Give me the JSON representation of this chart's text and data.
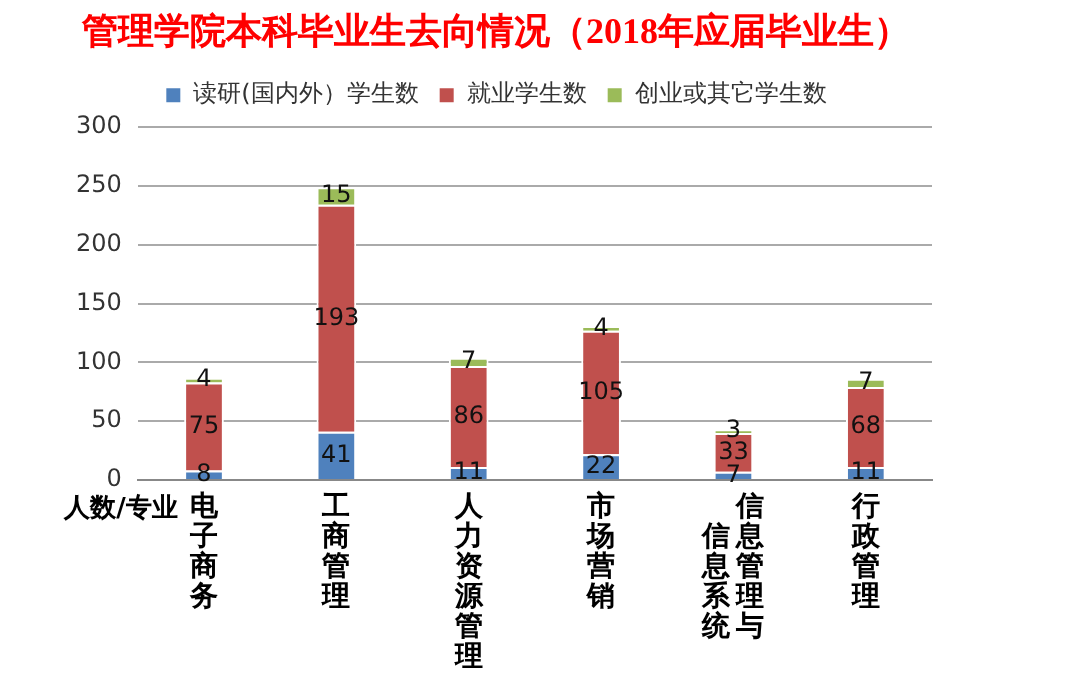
{
  "chart_data": {
    "type": "bar",
    "title": "管理学院本科毕业生去向情况（2018年应届毕业生）",
    "xlabel": "人数/专业",
    "categories": [
      "电子商务",
      "工商管理",
      "人力资源管理",
      "市场营销",
      "信息管理与信息系统",
      "行政管理"
    ],
    "series": [
      {
        "name": "读研(国内外）学生数",
        "color": "#4f81bd",
        "values": [
          8,
          41,
          11,
          22,
          7,
          11
        ]
      },
      {
        "name": "就业学生数",
        "color": "#c0504d",
        "values": [
          75,
          193,
          86,
          105,
          33,
          68
        ]
      },
      {
        "name": "创业或其它学生数",
        "color": "#9bbb59",
        "values": [
          4,
          15,
          7,
          4,
          3,
          7
        ]
      }
    ],
    "stacked": true,
    "ylim": [
      0,
      300
    ],
    "yticks": [
      0,
      50,
      100,
      150,
      200,
      250,
      300
    ],
    "grid": "y",
    "legend": "top",
    "data_labels": true
  }
}
